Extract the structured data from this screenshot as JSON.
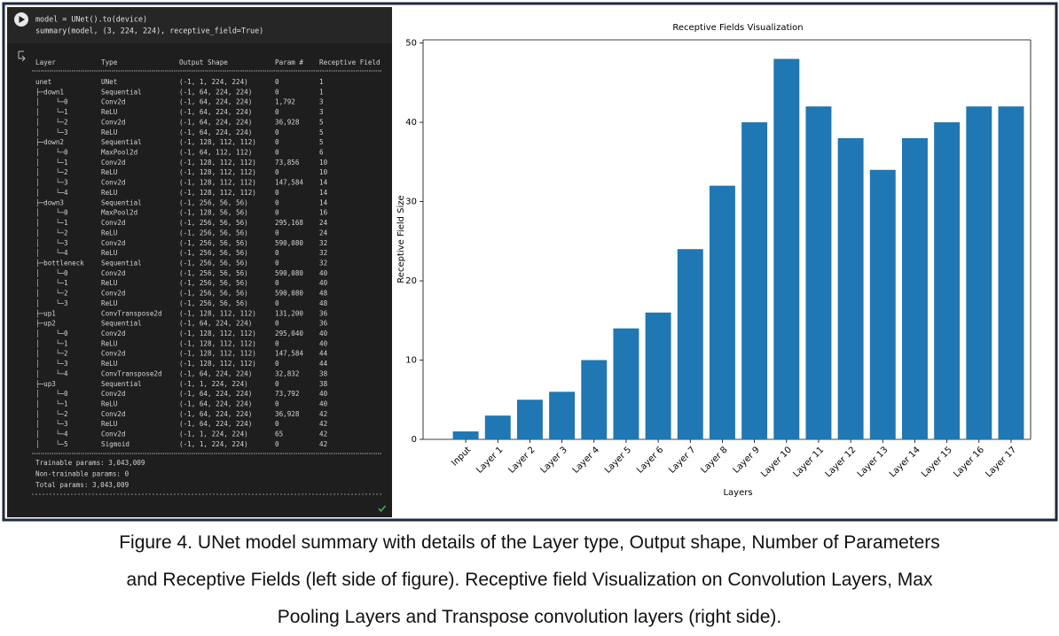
{
  "notebook": {
    "code": [
      "model = UNet().to(device)",
      "summary(model, (3, 224, 224), receptive_field=True)"
    ],
    "summary": {
      "header": [
        "Layer",
        "Type",
        "Output Shape",
        "Param #",
        "Receptive Field"
      ],
      "rows": [
        [
          "unet",
          "UNet",
          "(-1, 1, 224, 224)",
          "0",
          "1"
        ],
        [
          "├─down1",
          "Sequential",
          "(-1, 64, 224, 224)",
          "0",
          "1"
        ],
        [
          "│    └─0",
          "Conv2d",
          "(-1, 64, 224, 224)",
          "1,792",
          "3"
        ],
        [
          "│    └─1",
          "ReLU",
          "(-1, 64, 224, 224)",
          "0",
          "3"
        ],
        [
          "│    └─2",
          "Conv2d",
          "(-1, 64, 224, 224)",
          "36,928",
          "5"
        ],
        [
          "│    └─3",
          "ReLU",
          "(-1, 64, 224, 224)",
          "0",
          "5"
        ],
        [
          "├─down2",
          "Sequential",
          "(-1, 128, 112, 112)",
          "0",
          "5"
        ],
        [
          "│    └─0",
          "MaxPool2d",
          "(-1, 64, 112, 112)",
          "0",
          "6"
        ],
        [
          "│    └─1",
          "Conv2d",
          "(-1, 128, 112, 112)",
          "73,856",
          "10"
        ],
        [
          "│    └─2",
          "ReLU",
          "(-1, 128, 112, 112)",
          "0",
          "10"
        ],
        [
          "│    └─3",
          "Conv2d",
          "(-1, 128, 112, 112)",
          "147,584",
          "14"
        ],
        [
          "│    └─4",
          "ReLU",
          "(-1, 128, 112, 112)",
          "0",
          "14"
        ],
        [
          "├─down3",
          "Sequential",
          "(-1, 256, 56, 56)",
          "0",
          "14"
        ],
        [
          "│    └─0",
          "MaxPool2d",
          "(-1, 128, 56, 56)",
          "0",
          "16"
        ],
        [
          "│    └─1",
          "Conv2d",
          "(-1, 256, 56, 56)",
          "295,168",
          "24"
        ],
        [
          "│    └─2",
          "ReLU",
          "(-1, 256, 56, 56)",
          "0",
          "24"
        ],
        [
          "│    └─3",
          "Conv2d",
          "(-1, 256, 56, 56)",
          "590,080",
          "32"
        ],
        [
          "│    └─4",
          "ReLU",
          "(-1, 256, 56, 56)",
          "0",
          "32"
        ],
        [
          "├─bottleneck",
          "Sequential",
          "(-1, 256, 56, 56)",
          "0",
          "32"
        ],
        [
          "│    └─0",
          "Conv2d",
          "(-1, 256, 56, 56)",
          "590,080",
          "40"
        ],
        [
          "│    └─1",
          "ReLU",
          "(-1, 256, 56, 56)",
          "0",
          "40"
        ],
        [
          "│    └─2",
          "Conv2d",
          "(-1, 256, 56, 56)",
          "590,080",
          "48"
        ],
        [
          "│    └─3",
          "ReLU",
          "(-1, 256, 56, 56)",
          "0",
          "48"
        ],
        [
          "├─up1",
          "ConvTranspose2d",
          "(-1, 128, 112, 112)",
          "131,200",
          "36"
        ],
        [
          "├─up2",
          "Sequential",
          "(-1, 64, 224, 224)",
          "0",
          "36"
        ],
        [
          "│    └─0",
          "Conv2d",
          "(-1, 128, 112, 112)",
          "295,040",
          "40"
        ],
        [
          "│    └─1",
          "ReLU",
          "(-1, 128, 112, 112)",
          "0",
          "40"
        ],
        [
          "│    └─2",
          "Conv2d",
          "(-1, 128, 112, 112)",
          "147,584",
          "44"
        ],
        [
          "│    └─3",
          "ReLU",
          "(-1, 128, 112, 112)",
          "0",
          "44"
        ],
        [
          "│    └─4",
          "ConvTranspose2d",
          "(-1, 64, 224, 224)",
          "32,832",
          "38"
        ],
        [
          "├─up3",
          "Sequential",
          "(-1, 1, 224, 224)",
          "0",
          "38"
        ],
        [
          "│    └─0",
          "Conv2d",
          "(-1, 64, 224, 224)",
          "73,792",
          "40"
        ],
        [
          "│    └─1",
          "ReLU",
          "(-1, 64, 224, 224)",
          "0",
          "40"
        ],
        [
          "│    └─2",
          "Conv2d",
          "(-1, 64, 224, 224)",
          "36,928",
          "42"
        ],
        [
          "│    └─3",
          "ReLU",
          "(-1, 64, 224, 224)",
          "0",
          "42"
        ],
        [
          "│    └─4",
          "Conv2d",
          "(-1, 1, 224, 224)",
          "65",
          "42"
        ],
        [
          "│    └─5",
          "Sigmoid",
          "(-1, 1, 224, 224)",
          "0",
          "42"
        ]
      ],
      "totals": [
        "Trainable params: 3,043,009",
        "Non-trainable params: 0",
        "Total params: 3,043,009"
      ]
    }
  },
  "chart_data": {
    "type": "bar",
    "title": "Receptive Fields Visualization",
    "xlabel": "Layers",
    "ylabel": "Receptive Field Size",
    "categories": [
      "Input",
      "Layer 1",
      "Layer 2",
      "Layer 3",
      "Layer 4",
      "Layer 5",
      "Layer 6",
      "Layer 7",
      "Layer 8",
      "Layer 9",
      "Layer 10",
      "Layer 11",
      "Layer 12",
      "Layer 13",
      "Layer 14",
      "Layer 15",
      "Layer 16",
      "Layer 17"
    ],
    "values": [
      1,
      3,
      5,
      6,
      10,
      14,
      16,
      24,
      32,
      40,
      48,
      42,
      38,
      34,
      38,
      40,
      42,
      42
    ],
    "color": "#1f77b4",
    "ylim": [
      0,
      50.4
    ],
    "yticks": [
      0,
      10,
      20,
      30,
      40,
      50
    ]
  },
  "caption": [
    "Figure 4. UNet model summary with details of the Layer type, Output shape, Number of Parameters",
    "and Receptive Fields (left side of figure). Receptive field Visualization on Convolution Layers, Max",
    "Pooling Layers and Transpose convolution layers (right side)."
  ]
}
